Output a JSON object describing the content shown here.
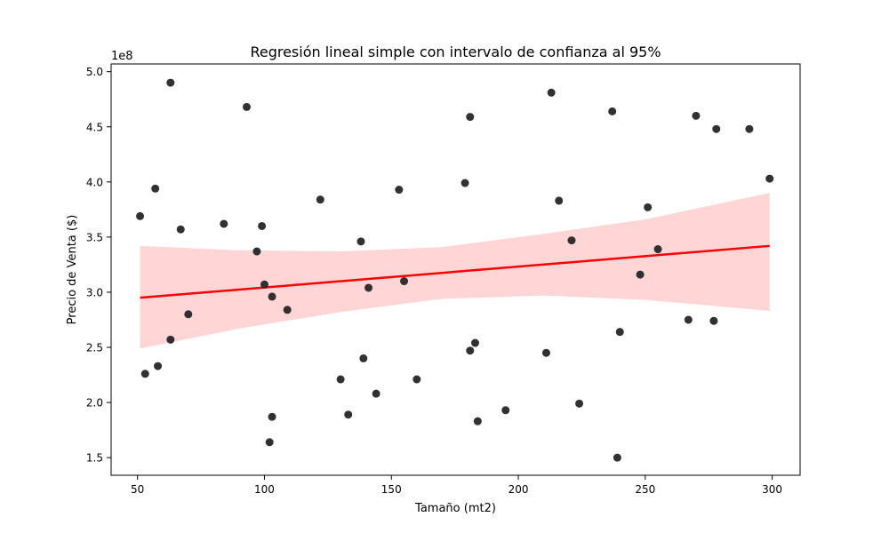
{
  "chart_data": {
    "type": "scatter",
    "title": "Regresión lineal simple con intervalo de confianza al 95%",
    "xlabel": "Tamaño (mt2)",
    "ylabel": "Precio de Venta ($)",
    "y_offset_label": "1e8",
    "xlim": [
      39.6,
      311.0
    ],
    "ylim": [
      1.34,
      5.07
    ],
    "x_ticks": [
      50,
      100,
      150,
      200,
      250,
      300
    ],
    "x_tick_labels": [
      "50",
      "100",
      "150",
      "200",
      "250",
      "300"
    ],
    "y_ticks": [
      1.5,
      2.0,
      2.5,
      3.0,
      3.5,
      4.0,
      4.5,
      5.0
    ],
    "y_tick_labels": [
      "1.5",
      "2.0",
      "2.5",
      "3.0",
      "3.5",
      "4.0",
      "4.5",
      "5.0"
    ],
    "grid": false,
    "colors": {
      "points": "#262626",
      "regression_line": "#ff0000",
      "confidence_band": "#ffd5d5"
    },
    "points": [
      {
        "x": 51,
        "y": 3.69
      },
      {
        "x": 53,
        "y": 2.26
      },
      {
        "x": 57,
        "y": 3.94
      },
      {
        "x": 58,
        "y": 2.33
      },
      {
        "x": 63,
        "y": 4.9
      },
      {
        "x": 63,
        "y": 2.57
      },
      {
        "x": 67,
        "y": 3.57
      },
      {
        "x": 70,
        "y": 2.8
      },
      {
        "x": 84,
        "y": 3.62
      },
      {
        "x": 93,
        "y": 4.68
      },
      {
        "x": 97,
        "y": 3.37
      },
      {
        "x": 99,
        "y": 3.6
      },
      {
        "x": 100,
        "y": 3.07
      },
      {
        "x": 102,
        "y": 1.64
      },
      {
        "x": 103,
        "y": 1.87
      },
      {
        "x": 103,
        "y": 2.96
      },
      {
        "x": 109,
        "y": 2.84
      },
      {
        "x": 122,
        "y": 3.84
      },
      {
        "x": 130,
        "y": 2.21
      },
      {
        "x": 133,
        "y": 1.89
      },
      {
        "x": 138,
        "y": 3.46
      },
      {
        "x": 139,
        "y": 2.4
      },
      {
        "x": 141,
        "y": 3.04
      },
      {
        "x": 144,
        "y": 2.08
      },
      {
        "x": 153,
        "y": 3.93
      },
      {
        "x": 155,
        "y": 3.1
      },
      {
        "x": 160,
        "y": 2.21
      },
      {
        "x": 179,
        "y": 3.99
      },
      {
        "x": 181,
        "y": 4.59
      },
      {
        "x": 181,
        "y": 2.47
      },
      {
        "x": 183,
        "y": 2.54
      },
      {
        "x": 184,
        "y": 1.83
      },
      {
        "x": 195,
        "y": 1.93
      },
      {
        "x": 211,
        "y": 2.45
      },
      {
        "x": 213,
        "y": 4.81
      },
      {
        "x": 216,
        "y": 3.83
      },
      {
        "x": 221,
        "y": 3.47
      },
      {
        "x": 224,
        "y": 1.99
      },
      {
        "x": 237,
        "y": 4.64
      },
      {
        "x": 239,
        "y": 1.5
      },
      {
        "x": 240,
        "y": 2.64
      },
      {
        "x": 248,
        "y": 3.16
      },
      {
        "x": 251,
        "y": 3.77
      },
      {
        "x": 255,
        "y": 3.39
      },
      {
        "x": 267,
        "y": 2.75
      },
      {
        "x": 270,
        "y": 4.6
      },
      {
        "x": 277,
        "y": 2.74
      },
      {
        "x": 278,
        "y": 4.48
      },
      {
        "x": 291,
        "y": 4.48
      },
      {
        "x": 299,
        "y": 4.03
      }
    ],
    "regression_line": {
      "x": [
        51,
        299
      ],
      "y": [
        2.95,
        3.42
      ]
    },
    "confidence_band": {
      "x": [
        51,
        90,
        130,
        170,
        210,
        250,
        299
      ],
      "lower": [
        2.49,
        2.67,
        2.82,
        2.94,
        2.97,
        2.93,
        2.83
      ],
      "upper": [
        3.42,
        3.38,
        3.37,
        3.41,
        3.53,
        3.66,
        3.9
      ]
    }
  }
}
